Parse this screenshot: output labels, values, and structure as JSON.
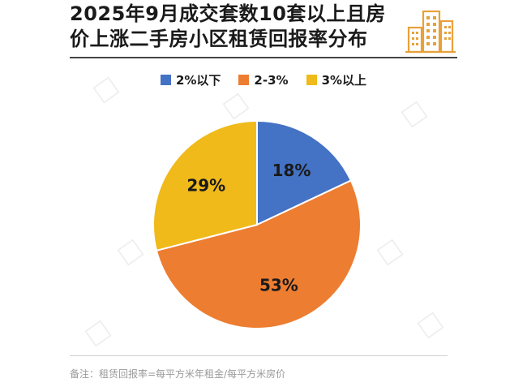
{
  "title_lines": [
    "2025年9月成交套数10套以上且房",
    "价上涨二手房小区租赁回报率分布"
  ],
  "icon": "building-icon",
  "footnote": "备注：租赁回报率=每平方米年租金/每平方米房价",
  "colors": {
    "blue": "#4472C4",
    "orange": "#ED7D31",
    "yellow": "#F0BA1A",
    "title_text": "#1a1a1a",
    "icon_accent": "#E8A13A"
  },
  "chart_data": {
    "type": "pie",
    "categories": [
      "2%以下",
      "2-3%",
      "3%以上"
    ],
    "values": [
      18,
      53,
      29
    ],
    "value_labels": [
      "18%",
      "53%",
      "29%"
    ],
    "start_angle": "12 o'clock",
    "direction": "clockwise",
    "legend_position": "top"
  }
}
